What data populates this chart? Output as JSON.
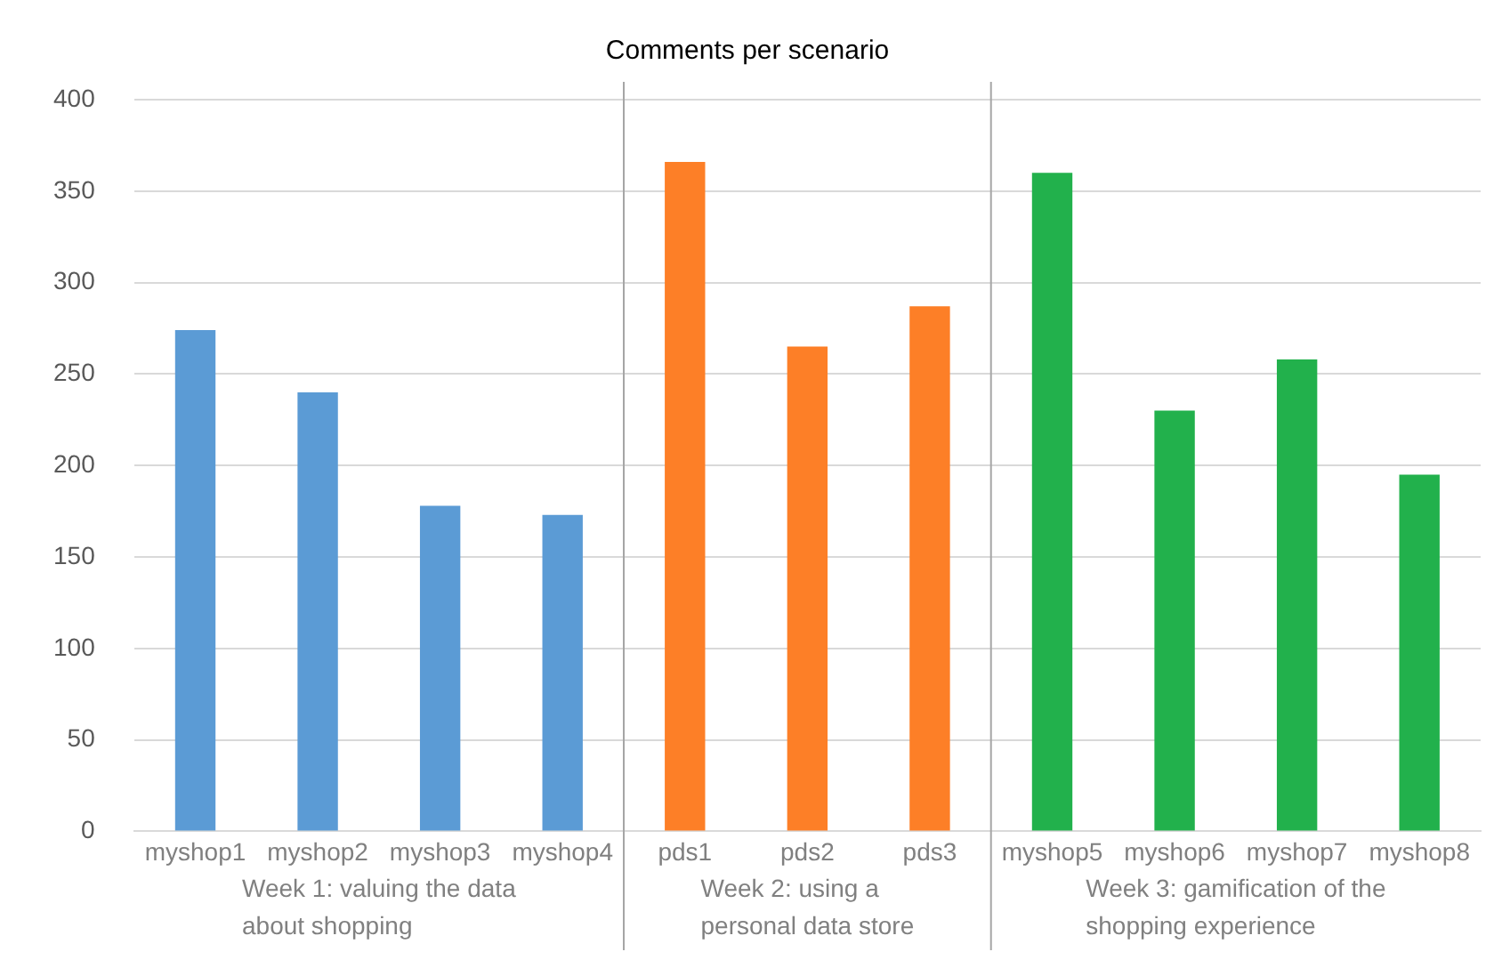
{
  "chart_data": {
    "type": "bar",
    "title": "Comments per scenario",
    "categories": [
      "myshop1",
      "myshop2",
      "myshop3",
      "myshop4",
      "pds1",
      "pds2",
      "pds3",
      "myshop5",
      "myshop6",
      "myshop7",
      "myshop8"
    ],
    "series": [
      {
        "name": "Week 1: valuing the data about shopping",
        "color": "#5b9bd5",
        "values": [
          274,
          240,
          178,
          173,
          null,
          null,
          null,
          null,
          null,
          null,
          null
        ]
      },
      {
        "name": "Week 2: using a personal data store",
        "color": "#fd7f27",
        "values": [
          null,
          null,
          null,
          null,
          366,
          265,
          287,
          null,
          null,
          null,
          null
        ]
      },
      {
        "name": "Week 3: gamification of the shopping experience",
        "color": "#22b14c",
        "values": [
          null,
          null,
          null,
          null,
          null,
          null,
          null,
          360,
          230,
          258,
          195
        ]
      }
    ],
    "ylim": [
      0,
      400
    ],
    "yticks": [
      0,
      50,
      100,
      150,
      200,
      250,
      300,
      350,
      400
    ],
    "grid": "y"
  }
}
